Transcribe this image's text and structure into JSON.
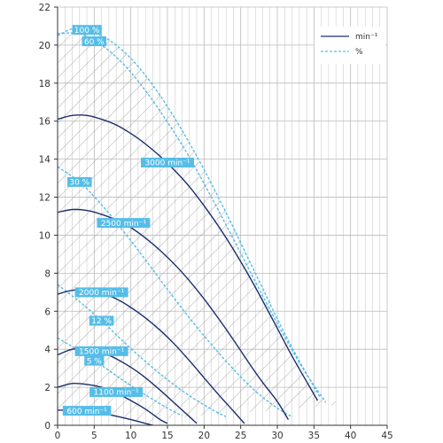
{
  "chart_data": {
    "type": "line",
    "title": "",
    "xlabel": "",
    "ylabel": "",
    "xlim": [
      0,
      45
    ],
    "ylim": [
      0,
      22
    ],
    "x_ticks": [
      "0",
      "5",
      "10",
      "15",
      "20",
      "25",
      "30",
      "35",
      "40",
      "45"
    ],
    "y_ticks": [
      "0",
      "2",
      "4",
      "6",
      "8",
      "10",
      "12",
      "14",
      "16",
      "18",
      "20",
      "22"
    ],
    "grid": true,
    "legend_position": "top-right",
    "legend": [
      {
        "label": "min⁻¹",
        "style": "solid"
      },
      {
        "label": "%",
        "style": "dashed"
      }
    ],
    "colors": {
      "speed_curve": "#1c2f6e",
      "efficiency_curve": "#55bde8",
      "label_fill": "#55bde8",
      "grid": "#bbbbbb",
      "hatch": "#9a9a9a"
    },
    "speed_curves": [
      {
        "label": "600 min⁻¹",
        "points": [
          [
            0,
            0.8
          ],
          [
            2,
            0.78
          ],
          [
            4,
            0.72
          ],
          [
            6,
            0.62
          ],
          [
            8,
            0.48
          ],
          [
            10,
            0.3
          ],
          [
            12,
            0.1
          ],
          [
            13,
            0.0
          ]
        ]
      },
      {
        "label": "1100 min⁻¹",
        "points": [
          [
            0,
            2.0
          ],
          [
            2,
            2.2
          ],
          [
            4,
            2.15
          ],
          [
            6,
            2.0
          ],
          [
            8,
            1.7
          ],
          [
            10,
            1.3
          ],
          [
            12,
            0.85
          ],
          [
            14,
            0.3
          ],
          [
            15,
            0.1
          ]
        ]
      },
      {
        "label": "1500 min⁻¹",
        "points": [
          [
            0,
            3.7
          ],
          [
            2,
            4.0
          ],
          [
            4,
            4.0
          ],
          [
            6,
            3.85
          ],
          [
            8,
            3.5
          ],
          [
            10,
            3.05
          ],
          [
            12,
            2.5
          ],
          [
            14,
            1.85
          ],
          [
            16,
            1.15
          ],
          [
            18,
            0.45
          ],
          [
            19,
            0.1
          ]
        ]
      },
      {
        "label": "2000 min⁻¹",
        "points": [
          [
            0,
            6.9
          ],
          [
            2,
            7.1
          ],
          [
            4,
            7.1
          ],
          [
            6,
            6.95
          ],
          [
            8,
            6.65
          ],
          [
            10,
            6.2
          ],
          [
            12,
            5.65
          ],
          [
            14,
            5.0
          ],
          [
            16,
            4.25
          ],
          [
            18,
            3.4
          ],
          [
            20,
            2.5
          ],
          [
            22,
            1.6
          ],
          [
            24,
            0.75
          ],
          [
            25.5,
            0.1
          ]
        ]
      },
      {
        "label": "2500 min⁻¹",
        "points": [
          [
            0,
            11.2
          ],
          [
            2,
            11.35
          ],
          [
            4,
            11.3
          ],
          [
            6,
            11.1
          ],
          [
            8,
            10.8
          ],
          [
            10,
            10.4
          ],
          [
            12,
            9.85
          ],
          [
            14,
            9.2
          ],
          [
            16,
            8.45
          ],
          [
            18,
            7.6
          ],
          [
            20,
            6.65
          ],
          [
            22,
            5.6
          ],
          [
            24,
            4.5
          ],
          [
            26,
            3.35
          ],
          [
            28,
            2.25
          ],
          [
            30,
            1.25
          ],
          [
            31.5,
            0.3
          ]
        ]
      },
      {
        "label": "3000 min⁻¹",
        "points": [
          [
            0,
            16.1
          ],
          [
            2,
            16.3
          ],
          [
            4,
            16.3
          ],
          [
            6,
            16.1
          ],
          [
            8,
            15.8
          ],
          [
            10,
            15.35
          ],
          [
            12,
            14.8
          ],
          [
            14,
            14.15
          ],
          [
            16,
            13.4
          ],
          [
            18,
            12.55
          ],
          [
            20,
            11.55
          ],
          [
            22,
            10.45
          ],
          [
            24,
            9.25
          ],
          [
            26,
            7.95
          ],
          [
            28,
            6.55
          ],
          [
            30,
            5.1
          ],
          [
            32,
            3.65
          ],
          [
            34,
            2.3
          ],
          [
            35.5,
            1.3
          ]
        ]
      }
    ],
    "efficiency_curves": [
      {
        "label": "100 %",
        "points": [
          [
            0,
            20.5
          ],
          [
            2,
            20.85
          ],
          [
            4,
            20.8
          ],
          [
            6,
            20.5
          ],
          [
            8,
            20.0
          ],
          [
            10,
            19.3
          ],
          [
            12,
            18.4
          ],
          [
            14,
            17.35
          ],
          [
            16,
            16.15
          ],
          [
            18,
            14.85
          ],
          [
            20,
            13.45
          ],
          [
            22,
            11.95
          ],
          [
            24,
            10.4
          ],
          [
            26,
            8.8
          ],
          [
            28,
            7.2
          ],
          [
            30,
            5.6
          ],
          [
            32,
            4.1
          ],
          [
            34,
            2.7
          ],
          [
            35.8,
            1.5
          ]
        ]
      },
      {
        "label": "60 %",
        "points": [
          [
            0,
            20.6
          ],
          [
            3,
            20.6
          ],
          [
            6,
            20.0
          ],
          [
            9,
            19.0
          ],
          [
            12,
            17.6
          ],
          [
            15,
            15.95
          ],
          [
            18,
            14.1
          ],
          [
            21,
            12.0
          ],
          [
            24,
            9.8
          ],
          [
            27,
            7.55
          ],
          [
            30,
            5.35
          ],
          [
            33,
            3.3
          ],
          [
            35,
            2.1
          ],
          [
            36.6,
            1.2
          ]
        ]
      },
      {
        "label": "30 %",
        "points": [
          [
            0,
            13.6
          ],
          [
            3,
            12.8
          ],
          [
            6,
            11.6
          ],
          [
            9,
            10.2
          ],
          [
            12,
            8.7
          ],
          [
            15,
            7.15
          ],
          [
            18,
            5.65
          ],
          [
            21,
            4.25
          ],
          [
            24,
            2.95
          ],
          [
            27,
            1.8
          ],
          [
            30,
            0.9
          ],
          [
            32,
            0.45
          ]
        ]
      },
      {
        "label": "12 %",
        "points": [
          [
            0,
            7.4
          ],
          [
            3,
            6.5
          ],
          [
            6,
            5.5
          ],
          [
            9,
            4.4
          ],
          [
            12,
            3.35
          ],
          [
            15,
            2.4
          ],
          [
            18,
            1.55
          ],
          [
            21,
            0.85
          ],
          [
            23,
            0.45
          ]
        ]
      },
      {
        "label": "5 %",
        "points": [
          [
            0,
            4.6
          ],
          [
            3,
            3.9
          ],
          [
            6,
            3.15
          ],
          [
            9,
            2.35
          ],
          [
            12,
            1.6
          ],
          [
            15,
            0.9
          ],
          [
            17,
            0.5
          ]
        ]
      }
    ]
  }
}
